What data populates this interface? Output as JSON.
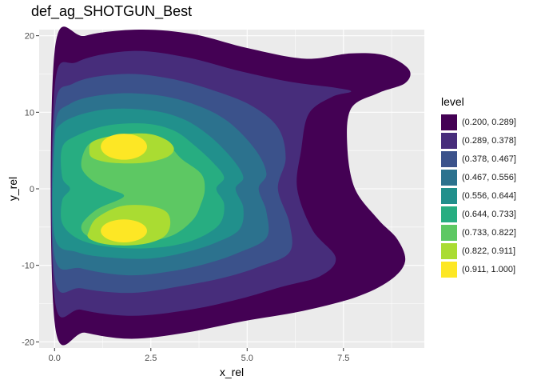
{
  "chart_data": {
    "type": "contour",
    "title": "def_ag_SHOTGUN_Best",
    "xlabel": "x_rel",
    "ylabel": "y_rel",
    "xlim": [
      -0.4,
      9.6
    ],
    "ylim": [
      -20.8,
      20.8
    ],
    "x_ticks": [
      0.0,
      2.5,
      5.0,
      7.5
    ],
    "x_tick_labels": [
      "0.0",
      "2.5",
      "5.0",
      "7.5"
    ],
    "y_ticks": [
      -20,
      -10,
      0,
      10,
      20
    ],
    "y_tick_labels": [
      "-20",
      "-10",
      "0",
      "10",
      "20"
    ],
    "grid": true,
    "legend_title": "level",
    "legend_position": "right",
    "levels": [
      {
        "label": "(0.200, 0.289]",
        "color": "#440154"
      },
      {
        "label": "(0.289, 0.378]",
        "color": "#472D7B"
      },
      {
        "label": "(0.378, 0.467]",
        "color": "#3B528B"
      },
      {
        "label": "(0.467, 0.556]",
        "color": "#2C728E"
      },
      {
        "label": "(0.556, 0.644]",
        "color": "#21908C"
      },
      {
        "label": "(0.644, 0.733]",
        "color": "#27AD81"
      },
      {
        "label": "(0.733, 0.822]",
        "color": "#5DC863"
      },
      {
        "label": "(0.822, 0.911]",
        "color": "#AADC32"
      },
      {
        "label": "(0.911, 1.000]",
        "color": "#FDE725"
      }
    ],
    "peaks": [
      {
        "x": 1.8,
        "y": 5.5,
        "density": 1.0
      },
      {
        "x": 1.8,
        "y": -5.5,
        "density": 1.0
      }
    ]
  }
}
